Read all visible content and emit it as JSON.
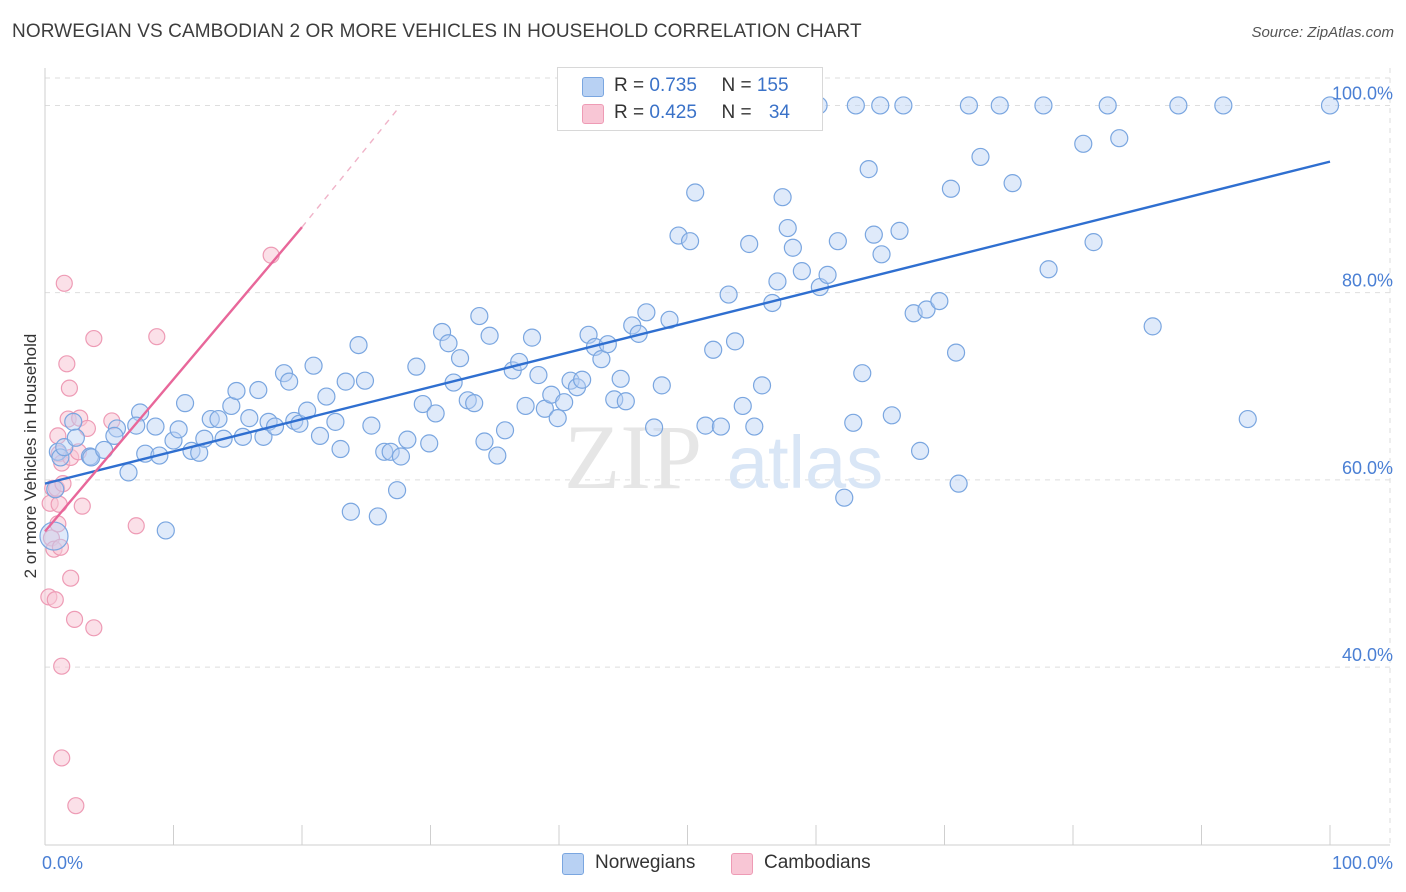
{
  "title": "NORWEGIAN VS CAMBODIAN 2 OR MORE VEHICLES IN HOUSEHOLD CORRELATION CHART",
  "source": "Source: ZipAtlas.com",
  "colors": {
    "blue_fill": "#b8d1f3",
    "blue_stroke": "#7aa6e0",
    "blue_line": "#2f6fd0",
    "pink_fill": "#f8c6d5",
    "pink_stroke": "#ee9bb5",
    "pink_line": "#e8679a",
    "tick_label": "#4a7fd4",
    "grid": "#dedede"
  },
  "legend": {
    "rows": [
      {
        "r_label": "R = ",
        "r_value": "0.735",
        "n_label": "N = ",
        "n_value": "155"
      },
      {
        "r_label": "R = ",
        "r_value": "0.425",
        "n_label": "N = ",
        "n_value": "34"
      }
    ]
  },
  "bottom_legend": [
    "Norwegians",
    "Cambodians"
  ],
  "watermark": {
    "zip": "ZIP",
    "atlas": "atlas"
  },
  "chart_data": {
    "type": "scatter",
    "title": "NORWEGIAN VS CAMBODIAN 2 OR MORE VEHICLES IN HOUSEHOLD CORRELATION CHART",
    "xlabel": "",
    "ylabel": "2 or more Vehicles in Household",
    "xlim": [
      0,
      100
    ],
    "ylim": [
      21,
      104
    ],
    "x_tick_labels": [
      "0.0%",
      "100.0%"
    ],
    "y_ticks": [
      40,
      60,
      80,
      100
    ],
    "y_tick_labels": [
      "40.0%",
      "60.0%",
      "80.0%",
      "100.0%"
    ],
    "grid": true,
    "legend_position": "top-center",
    "series": [
      {
        "name": "Norwegians",
        "r": 0.735,
        "n": 155,
        "trend": {
          "x": [
            0,
            100
          ],
          "y": [
            59.6,
            94.0
          ]
        },
        "points": [
          [
            0.7,
            54
          ],
          [
            0.8,
            59
          ],
          [
            1.0,
            63
          ],
          [
            1.2,
            62.4
          ],
          [
            1.5,
            63.5
          ],
          [
            2.2,
            66.2
          ],
          [
            3.5,
            62.5
          ],
          [
            2.4,
            64.5
          ],
          [
            3.6,
            62.4
          ],
          [
            4.6,
            63.2
          ],
          [
            5.6,
            65.5
          ],
          [
            5.4,
            64.7
          ],
          [
            6.5,
            60.8
          ],
          [
            7.4,
            67.2
          ],
          [
            7.1,
            65.8
          ],
          [
            7.8,
            62.8
          ],
          [
            8.6,
            65.7
          ],
          [
            8.9,
            62.6
          ],
          [
            9.4,
            54.6
          ],
          [
            10.0,
            64.2
          ],
          [
            10.4,
            65.4
          ],
          [
            10.9,
            68.2
          ],
          [
            11.4,
            63.1
          ],
          [
            12.0,
            62.9
          ],
          [
            12.4,
            64.4
          ],
          [
            12.9,
            66.5
          ],
          [
            13.5,
            66.5
          ],
          [
            13.9,
            64.4
          ],
          [
            14.5,
            67.9
          ],
          [
            14.9,
            69.5
          ],
          [
            15.4,
            64.6
          ],
          [
            15.9,
            66.6
          ],
          [
            16.6,
            69.6
          ],
          [
            17.0,
            64.6
          ],
          [
            17.4,
            66.2
          ],
          [
            17.9,
            65.7
          ],
          [
            18.6,
            71.4
          ],
          [
            19.0,
            70.5
          ],
          [
            19.4,
            66.3
          ],
          [
            19.8,
            66.0
          ],
          [
            20.4,
            67.4
          ],
          [
            20.9,
            72.2
          ],
          [
            21.4,
            64.7
          ],
          [
            21.9,
            68.9
          ],
          [
            22.6,
            66.2
          ],
          [
            23.0,
            63.3
          ],
          [
            23.4,
            70.5
          ],
          [
            23.8,
            56.6
          ],
          [
            24.4,
            74.4
          ],
          [
            24.9,
            70.6
          ],
          [
            25.4,
            65.8
          ],
          [
            25.9,
            56.1
          ],
          [
            26.4,
            63.0
          ],
          [
            26.9,
            63.0
          ],
          [
            27.4,
            58.9
          ],
          [
            27.7,
            62.5
          ],
          [
            28.2,
            64.3
          ],
          [
            28.9,
            72.1
          ],
          [
            29.4,
            68.1
          ],
          [
            29.9,
            63.9
          ],
          [
            30.4,
            67.1
          ],
          [
            30.9,
            75.8
          ],
          [
            31.4,
            74.6
          ],
          [
            31.8,
            70.4
          ],
          [
            32.3,
            73.0
          ],
          [
            32.9,
            68.5
          ],
          [
            33.4,
            68.2
          ],
          [
            33.8,
            77.5
          ],
          [
            34.2,
            64.1
          ],
          [
            34.6,
            75.4
          ],
          [
            35.2,
            62.6
          ],
          [
            35.8,
            65.3
          ],
          [
            36.4,
            71.7
          ],
          [
            36.9,
            72.6
          ],
          [
            37.4,
            67.9
          ],
          [
            37.9,
            75.2
          ],
          [
            38.4,
            71.2
          ],
          [
            38.9,
            67.6
          ],
          [
            39.4,
            69.1
          ],
          [
            39.9,
            66.6
          ],
          [
            40.4,
            68.3
          ],
          [
            40.9,
            70.6
          ],
          [
            41.4,
            69.9
          ],
          [
            41.8,
            70.7
          ],
          [
            42.3,
            75.5
          ],
          [
            42.8,
            74.2
          ],
          [
            43.3,
            72.9
          ],
          [
            43.8,
            74.5
          ],
          [
            44.3,
            68.6
          ],
          [
            44.8,
            70.8
          ],
          [
            45.2,
            68.4
          ],
          [
            45.7,
            76.5
          ],
          [
            46.2,
            75.6
          ],
          [
            46.8,
            77.9
          ],
          [
            47.4,
            65.6
          ],
          [
            48.0,
            70.1
          ],
          [
            48.6,
            77.1
          ],
          [
            49.3,
            86.1
          ],
          [
            50.2,
            85.5
          ],
          [
            50.6,
            90.7
          ],
          [
            51.4,
            65.8
          ],
          [
            52.0,
            73.9
          ],
          [
            52.6,
            65.7
          ],
          [
            53.2,
            79.8
          ],
          [
            53.7,
            74.8
          ],
          [
            54.3,
            67.9
          ],
          [
            54.8,
            85.2
          ],
          [
            55.2,
            65.7
          ],
          [
            55.8,
            70.1
          ],
          [
            56.6,
            78.9
          ],
          [
            57.0,
            81.2
          ],
          [
            57.4,
            90.2
          ],
          [
            57.8,
            86.9
          ],
          [
            58.2,
            84.8
          ],
          [
            58.9,
            82.3
          ],
          [
            60.3,
            80.6
          ],
          [
            60.9,
            81.9
          ],
          [
            61.7,
            85.5
          ],
          [
            62.2,
            58.1
          ],
          [
            62.9,
            66.1
          ],
          [
            63.6,
            71.4
          ],
          [
            64.1,
            93.2
          ],
          [
            64.5,
            86.2
          ],
          [
            65.1,
            84.1
          ],
          [
            65.9,
            66.9
          ],
          [
            66.5,
            86.6
          ],
          [
            67.6,
            77.8
          ],
          [
            68.1,
            63.1
          ],
          [
            68.6,
            78.2
          ],
          [
            69.6,
            79.1
          ],
          [
            70.5,
            91.1
          ],
          [
            70.9,
            73.6
          ],
          [
            71.1,
            59.6
          ],
          [
            72.8,
            94.5
          ],
          [
            75.3,
            91.7
          ],
          [
            78.1,
            82.5
          ],
          [
            80.8,
            95.9
          ],
          [
            81.6,
            85.4
          ],
          [
            83.6,
            96.5
          ],
          [
            86.2,
            76.4
          ],
          [
            93.6,
            66.5
          ],
          [
            60.2,
            100
          ],
          [
            63.1,
            100
          ],
          [
            65.0,
            100
          ],
          [
            66.8,
            100
          ],
          [
            71.9,
            100
          ],
          [
            74.3,
            100
          ],
          [
            77.7,
            100
          ],
          [
            82.7,
            100
          ],
          [
            88.2,
            100
          ],
          [
            91.7,
            100
          ],
          [
            100.0,
            100
          ]
        ]
      },
      {
        "name": "Cambodians",
        "r": 0.425,
        "n": 34,
        "trend": {
          "x": [
            0,
            20
          ],
          "y": [
            54.5,
            87.0
          ]
        },
        "trend_dashed": {
          "x": [
            20,
            27.5
          ],
          "y": [
            87.0,
            99.7
          ]
        },
        "points": [
          [
            0.3,
            47.5
          ],
          [
            0.4,
            57.5
          ],
          [
            0.5,
            53.8
          ],
          [
            0.6,
            59.1
          ],
          [
            0.7,
            52.6
          ],
          [
            0.8,
            47.2
          ],
          [
            0.9,
            59.1
          ],
          [
            1.0,
            64.7
          ],
          [
            1.0,
            55.3
          ],
          [
            1.1,
            57.4
          ],
          [
            1.1,
            62.8
          ],
          [
            1.2,
            52.8
          ],
          [
            1.3,
            61.8
          ],
          [
            1.3,
            40.1
          ],
          [
            1.3,
            30.3
          ],
          [
            1.4,
            59.6
          ],
          [
            1.5,
            81.0
          ],
          [
            1.7,
            72.4
          ],
          [
            1.8,
            66.5
          ],
          [
            1.9,
            69.8
          ],
          [
            2.0,
            62.4
          ],
          [
            2.0,
            49.5
          ],
          [
            2.3,
            45.1
          ],
          [
            2.4,
            25.2
          ],
          [
            2.6,
            63.0
          ],
          [
            2.7,
            66.6
          ],
          [
            2.9,
            57.2
          ],
          [
            3.3,
            65.5
          ],
          [
            3.8,
            44.2
          ],
          [
            3.8,
            75.1
          ],
          [
            5.2,
            66.3
          ],
          [
            7.1,
            55.1
          ],
          [
            8.7,
            75.3
          ],
          [
            17.6,
            84.0
          ]
        ]
      }
    ]
  }
}
